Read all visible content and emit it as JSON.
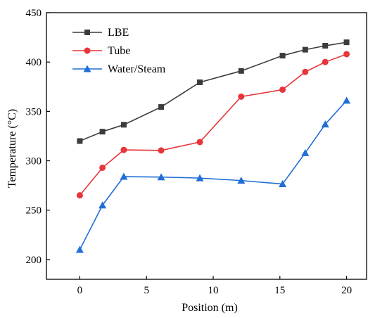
{
  "chart_data": {
    "type": "line",
    "xlabel": "Position (m)",
    "ylabel": "Temperature (°C)",
    "xlim": [
      -2.5,
      21.5
    ],
    "ylim": [
      180,
      450
    ],
    "xticks": [
      0,
      5,
      10,
      15,
      20
    ],
    "yticks": [
      200,
      250,
      300,
      350,
      400,
      450
    ],
    "xtick_labels": [
      "0",
      "5",
      "10",
      "15",
      "20"
    ],
    "ytick_labels": [
      "200",
      "250",
      "300",
      "350",
      "400",
      "450"
    ],
    "grid": false,
    "legend_position": "top-left",
    "series": [
      {
        "name": "LBE",
        "color": "#3c3c3c",
        "marker": "square",
        "x": [
          0,
          1.7,
          3.3,
          6.1,
          9.0,
          12.1,
          15.2,
          16.9,
          18.4,
          20.0
        ],
        "y": [
          320,
          329.5,
          336.5,
          354.5,
          379.5,
          391,
          406.5,
          412.5,
          416.5,
          420
        ]
      },
      {
        "name": "Tube",
        "color": "#e8353b",
        "marker": "circle",
        "x": [
          0,
          1.7,
          3.3,
          6.1,
          9.0,
          12.1,
          15.2,
          16.9,
          18.4,
          20.0
        ],
        "y": [
          265,
          293,
          311,
          310.5,
          319,
          365,
          372,
          390,
          400,
          408
        ]
      },
      {
        "name": "Water/Steam",
        "color": "#1f6fd6",
        "marker": "triangle",
        "x": [
          0,
          1.7,
          3.3,
          6.1,
          9.0,
          12.1,
          15.2,
          16.9,
          18.4,
          20.0
        ],
        "y": [
          210,
          255,
          284,
          283.5,
          282.5,
          280,
          276.5,
          308,
          337,
          361
        ]
      }
    ]
  }
}
